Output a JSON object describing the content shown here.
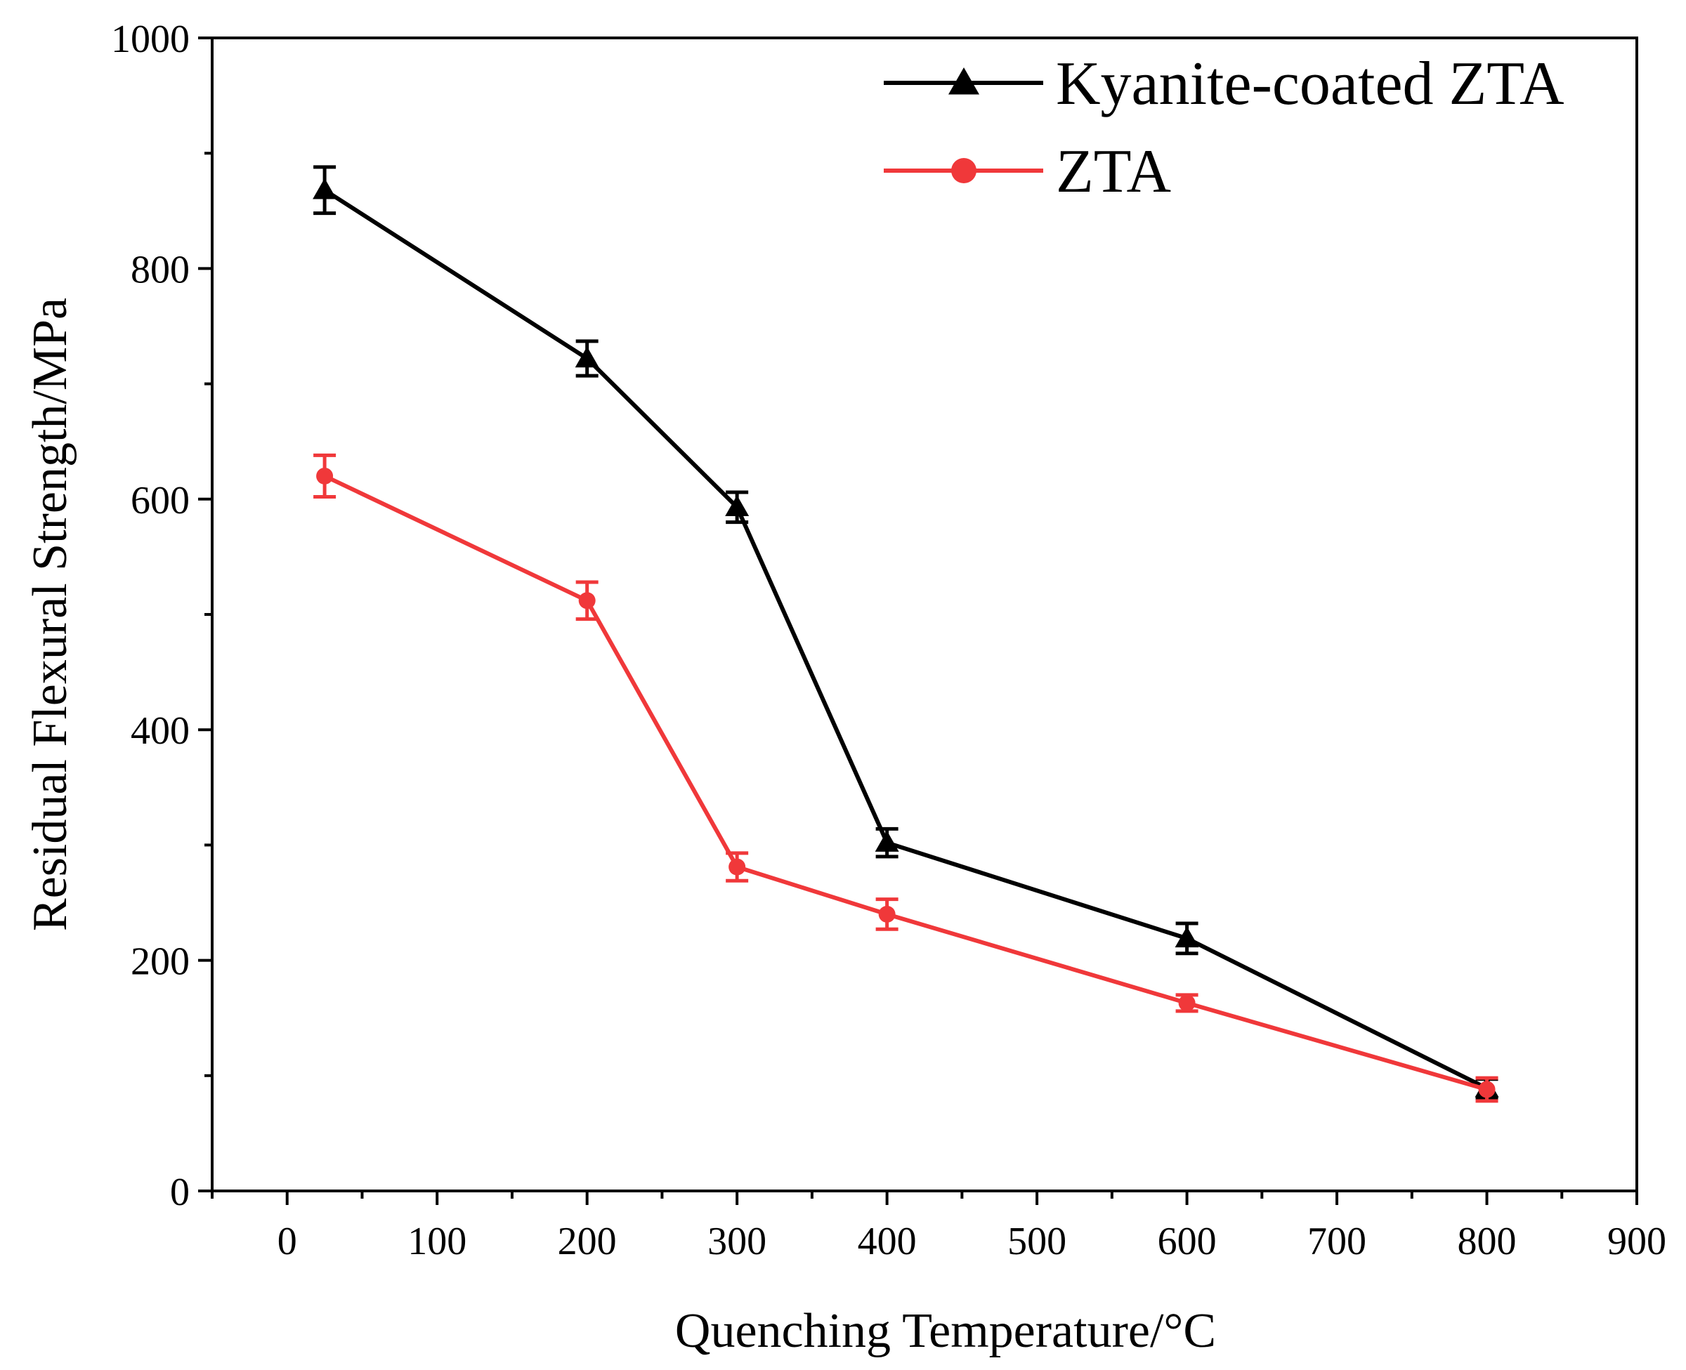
{
  "chart_data": {
    "type": "line",
    "title": "",
    "xlabel": "Quenching Temperature/°C",
    "ylabel": "Residual Flexural Strength/MPa",
    "xlim": [
      -50,
      900
    ],
    "ylim": [
      0,
      1000
    ],
    "x_ticks": [
      0,
      100,
      200,
      300,
      400,
      500,
      600,
      700,
      800,
      900
    ],
    "y_ticks": [
      0,
      200,
      400,
      600,
      800,
      1000
    ],
    "x_tick_labels": [
      "0",
      "100",
      "200",
      "300",
      "400",
      "500",
      "600",
      "700",
      "800",
      "900"
    ],
    "y_tick_labels": [
      "0",
      "200",
      "400",
      "600",
      "800",
      "1000"
    ],
    "grid": false,
    "legend_position": "top-right",
    "series": [
      {
        "name": "Kyanite-coated ZTA",
        "color": "#000000",
        "marker": "triangle",
        "points": [
          {
            "x": 25,
            "y": 868,
            "err": 20
          },
          {
            "x": 200,
            "y": 722,
            "err": 15
          },
          {
            "x": 300,
            "y": 593,
            "err": 13
          },
          {
            "x": 400,
            "y": 302,
            "err": 12
          },
          {
            "x": 600,
            "y": 219,
            "err": 13
          },
          {
            "x": 800,
            "y": 89,
            "err": 8
          }
        ]
      },
      {
        "name": "ZTA",
        "color": "#f0383a",
        "marker": "circle",
        "points": [
          {
            "x": 25,
            "y": 620,
            "err": 18
          },
          {
            "x": 200,
            "y": 512,
            "err": 16
          },
          {
            "x": 300,
            "y": 281,
            "err": 12
          },
          {
            "x": 400,
            "y": 240,
            "err": 13
          },
          {
            "x": 600,
            "y": 163,
            "err": 7
          },
          {
            "x": 800,
            "y": 88,
            "err": 10
          }
        ]
      }
    ]
  }
}
